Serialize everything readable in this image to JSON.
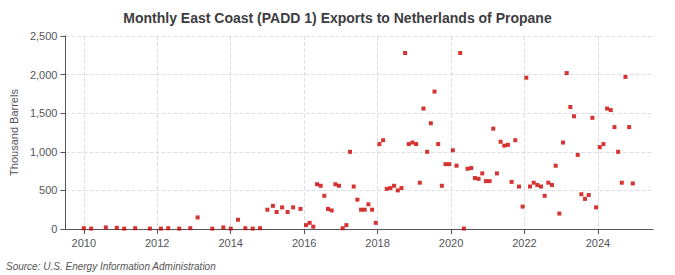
{
  "chart_data": {
    "type": "scatter",
    "title": "Monthly East Coast (PADD 1) Exports to Netherlands of Propane",
    "ylabel": "Thousand Barrels",
    "annotation": "Source: U.S. Energy Information Administration",
    "color": "#cc0000",
    "marker": "square",
    "grid": true,
    "xlim": [
      2009.5,
      2025.5
    ],
    "xticks": [
      2010,
      2012,
      2014,
      2016,
      2018,
      2020,
      2022,
      2024
    ],
    "ylim": [
      0,
      2500
    ],
    "yticks": [
      0,
      500,
      {
        "value": 1000,
        "label": "1,000"
      },
      {
        "value": 1500,
        "label": "1,500"
      },
      {
        "value": 2000,
        "label": "2,000"
      },
      {
        "value": 2500,
        "label": "2,500"
      }
    ],
    "x": [
      2010.0,
      2010.2,
      2010.6,
      2010.9,
      2011.1,
      2011.4,
      2011.8,
      2012.1,
      2012.3,
      2012.6,
      2012.9,
      2013.1,
      2013.5,
      2013.8,
      2014.0,
      2014.2,
      2014.4,
      2014.6,
      2014.8,
      2015.0,
      2015.15,
      2015.25,
      2015.4,
      2015.55,
      2015.7,
      2015.9,
      2016.05,
      2016.15,
      2016.25,
      2016.35,
      2016.45,
      2016.55,
      2016.65,
      2016.75,
      2016.85,
      2016.95,
      2017.05,
      2017.15,
      2017.25,
      2017.35,
      2017.45,
      2017.55,
      2017.65,
      2017.75,
      2017.85,
      2017.95,
      2018.05,
      2018.15,
      2018.25,
      2018.35,
      2018.45,
      2018.55,
      2018.65,
      2018.75,
      2018.85,
      2018.95,
      2019.05,
      2019.15,
      2019.25,
      2019.35,
      2019.45,
      2019.55,
      2019.65,
      2019.75,
      2019.85,
      2019.95,
      2020.05,
      2020.15,
      2020.25,
      2020.35,
      2020.45,
      2020.55,
      2020.65,
      2020.75,
      2020.85,
      2020.95,
      2021.05,
      2021.15,
      2021.25,
      2021.35,
      2021.45,
      2021.55,
      2021.65,
      2021.75,
      2021.85,
      2021.95,
      2022.05,
      2022.15,
      2022.25,
      2022.35,
      2022.45,
      2022.55,
      2022.65,
      2022.75,
      2022.85,
      2022.95,
      2023.05,
      2023.15,
      2023.25,
      2023.35,
      2023.45,
      2023.55,
      2023.65,
      2023.75,
      2023.85,
      2023.95,
      2024.05,
      2024.15,
      2024.25,
      2024.35,
      2024.45,
      2024.55,
      2024.65,
      2024.75,
      2024.85,
      2024.95
    ],
    "values": [
      10,
      5,
      20,
      15,
      5,
      10,
      5,
      5,
      10,
      5,
      10,
      150,
      5,
      20,
      5,
      120,
      10,
      5,
      10,
      250,
      300,
      220,
      280,
      220,
      280,
      260,
      50,
      80,
      30,
      580,
      560,
      430,
      260,
      240,
      580,
      560,
      10,
      50,
      1000,
      550,
      380,
      250,
      250,
      320,
      250,
      80,
      1100,
      1150,
      520,
      530,
      560,
      500,
      530,
      2280,
      1100,
      1120,
      1100,
      600,
      1560,
      1000,
      1370,
      1780,
      1100,
      560,
      840,
      840,
      1020,
      820,
      2280,
      5,
      780,
      790,
      660,
      650,
      720,
      620,
      620,
      1300,
      720,
      1130,
      1080,
      1090,
      610,
      1150,
      550,
      290,
      1960,
      550,
      600,
      570,
      550,
      430,
      600,
      570,
      820,
      200,
      1120,
      2020,
      1580,
      1460,
      960,
      450,
      390,
      440,
      1440,
      280,
      1060,
      1100,
      1560,
      1540,
      1320,
      1000,
      600,
      1970,
      1320,
      590
    ]
  }
}
